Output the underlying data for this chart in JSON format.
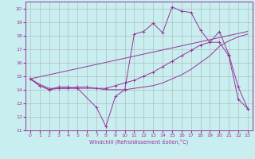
{
  "xlabel": "Windchill (Refroidissement éolien,°C)",
  "bg_color": "#c8eef0",
  "line_color": "#993399",
  "grid_color": "#b0b0b0",
  "xlim": [
    -0.5,
    23.5
  ],
  "ylim": [
    11,
    20.5
  ],
  "yticks": [
    11,
    12,
    13,
    14,
    15,
    16,
    17,
    18,
    19,
    20
  ],
  "xticks": [
    0,
    1,
    2,
    3,
    4,
    5,
    6,
    7,
    8,
    9,
    10,
    11,
    12,
    13,
    14,
    15,
    16,
    17,
    18,
    19,
    20,
    21,
    22,
    23
  ],
  "line1_x": [
    0,
    1,
    2,
    3,
    4,
    5,
    7,
    8,
    9,
    10,
    11,
    12,
    13,
    14,
    15,
    16,
    17,
    18,
    19,
    20,
    21,
    22,
    23
  ],
  "line1_y": [
    14.8,
    14.3,
    14.0,
    14.2,
    14.2,
    14.1,
    12.7,
    11.3,
    13.5,
    14.0,
    18.1,
    18.3,
    18.9,
    18.2,
    20.1,
    19.8,
    19.7,
    18.4,
    17.5,
    18.3,
    16.6,
    14.2,
    12.6
  ],
  "line2_x": [
    0,
    23
  ],
  "line2_y": [
    14.8,
    18.3
  ],
  "line3_x": [
    0,
    1,
    2,
    3,
    4,
    5,
    6,
    7,
    8,
    9,
    10,
    11,
    12,
    13,
    14,
    15,
    16,
    17,
    18,
    19,
    20,
    21,
    22,
    23
  ],
  "line3_y": [
    14.8,
    14.4,
    14.1,
    14.1,
    14.1,
    14.1,
    14.1,
    14.1,
    14.0,
    14.0,
    14.0,
    14.1,
    14.2,
    14.3,
    14.5,
    14.8,
    15.1,
    15.5,
    16.0,
    16.5,
    17.2,
    17.6,
    17.9,
    18.1
  ],
  "line4_x": [
    0,
    1,
    2,
    3,
    4,
    5,
    6,
    7,
    8,
    9,
    10,
    11,
    12,
    13,
    14,
    15,
    16,
    17,
    18,
    19,
    20,
    21,
    22,
    23
  ],
  "line4_y": [
    14.8,
    14.3,
    14.0,
    14.1,
    14.1,
    14.2,
    14.2,
    14.1,
    14.1,
    14.3,
    14.5,
    14.7,
    15.0,
    15.3,
    15.7,
    16.1,
    16.5,
    16.9,
    17.3,
    17.5,
    17.5,
    16.5,
    13.3,
    12.6
  ]
}
